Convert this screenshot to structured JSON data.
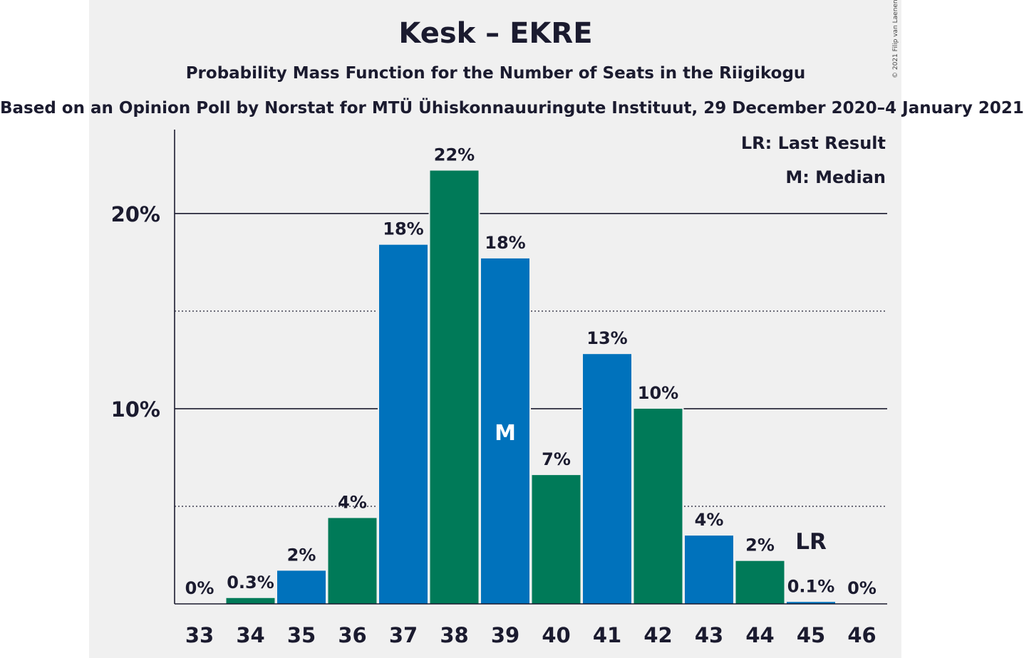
{
  "chart_data": {
    "type": "bar",
    "title": "Kesk – EKRE",
    "subtitle": "Probability Mass Function for the Number of Seats in the Riigikogu",
    "source": "Based on an Opinion Poll by Norstat for MTÜ Ühiskonnauuringute Instituut, 29 December 2020–4 January 2021",
    "copyright": "© 2021 Filip van Laenen",
    "categories": [
      "33",
      "34",
      "35",
      "36",
      "37",
      "38",
      "39",
      "40",
      "41",
      "42",
      "43",
      "44",
      "45",
      "46"
    ],
    "values": [
      0,
      0.3,
      1.7,
      4.4,
      18.4,
      22.2,
      17.7,
      6.6,
      12.8,
      10.0,
      3.5,
      2.2,
      0.1,
      0
    ],
    "value_labels": [
      "0%",
      "0.3%",
      "2%",
      "4%",
      "18%",
      "22%",
      "18%",
      "7%",
      "13%",
      "10%",
      "4%",
      "2%",
      "0.1%",
      "0%"
    ],
    "bar_colors": [
      "#0072bc",
      "#007a58"
    ],
    "ylim": [
      0,
      24.3
    ],
    "yticks": [
      10,
      20
    ],
    "ytick_labels": [
      "10%",
      "20%"
    ],
    "minor_gridlines": [
      5,
      15
    ],
    "median_seat": "39",
    "median_mark": "M",
    "last_result_seat": "45",
    "last_result_mark": "LR",
    "legend": [
      "LR: Last Result",
      "M: Median"
    ],
    "legend_position": "top-right"
  }
}
